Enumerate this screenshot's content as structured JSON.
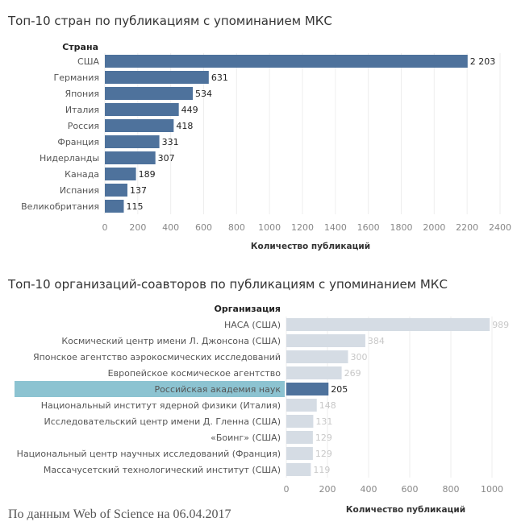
{
  "chart_data": [
    {
      "type": "bar",
      "orientation": "horizontal",
      "title": "Топ-10 стран по публикациям с упоминанием МКС",
      "category_header": "Страна",
      "xlabel": "Количество публикаций",
      "categories": [
        "США",
        "Германия",
        "Япония",
        "Италия",
        "Россия",
        "Франция",
        "Нидерланды",
        "Канада",
        "Испания",
        "Великобритания"
      ],
      "values": [
        2203,
        631,
        534,
        449,
        418,
        331,
        307,
        189,
        137,
        115
      ],
      "value_labels": [
        "2 203",
        "631",
        "534",
        "449",
        "418",
        "331",
        "307",
        "189",
        "137",
        "115"
      ],
      "xlim": [
        0,
        2400
      ],
      "xticks": [
        0,
        200,
        400,
        600,
        800,
        1000,
        1200,
        1400,
        1600,
        1800,
        2000,
        2200,
        2400
      ],
      "grid": true,
      "bar_color": "#4e729c"
    },
    {
      "type": "bar",
      "orientation": "horizontal",
      "title": "Топ-10 организаций-соавторов по публикациям с упоминанием МКС",
      "category_header": "Организация",
      "xlabel": "Количество публикаций",
      "categories": [
        "НАСА (США)",
        "Космический центр имени Л. Джонсона (США)",
        "Японское агентство аэрокосмических исследований",
        "Европейское космическое агентство",
        "Российская академия наук",
        "Национальный институт ядерной физики (Италия)",
        "Исследовательский центр имени Д. Гленна (США)",
        "«Боинг» (США)",
        "Национальный центр научных исследований (Франция)",
        "Массачусетский технологический институт (США)"
      ],
      "values": [
        989,
        384,
        300,
        269,
        205,
        148,
        131,
        129,
        129,
        119
      ],
      "value_labels": [
        "989",
        "384",
        "300",
        "269",
        "205",
        "148",
        "131",
        "129",
        "129",
        "119"
      ],
      "xlim": [
        0,
        1100
      ],
      "xticks": [
        0,
        200,
        400,
        600,
        800,
        1000
      ],
      "grid": true,
      "highlighted": "Российская академия наук",
      "bar_color": "#d5dce4",
      "highlight_bar_color": "#4e729c",
      "highlight_label_bg": "#8cc3d1"
    }
  ],
  "footnote": "По данным Web of Science на 06.04.2017"
}
